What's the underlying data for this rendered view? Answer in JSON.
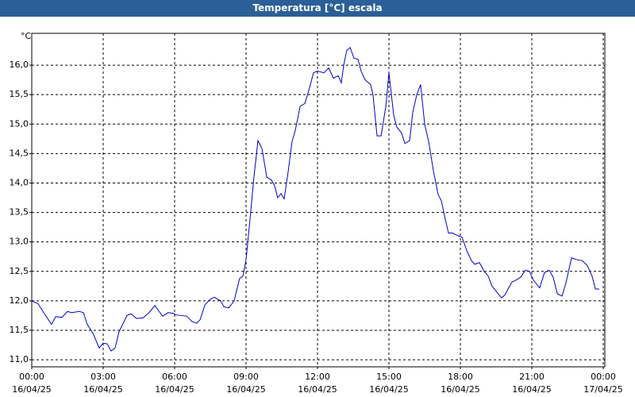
{
  "chart_data": {
    "type": "line",
    "title": "Temperatura [°C] escala",
    "y_label": "°C",
    "grid": true,
    "color": "#0000c8",
    "xlim": [
      0,
      24
    ],
    "xticks": [
      {
        "value": 0,
        "label": "00:00"
      },
      {
        "value": 3,
        "label": "03:00"
      },
      {
        "value": 6,
        "label": "06:00"
      },
      {
        "value": 9,
        "label": "09:00"
      },
      {
        "value": 12,
        "label": "12:00"
      },
      {
        "value": 15,
        "label": "15:00"
      },
      {
        "value": 18,
        "label": "18:00"
      },
      {
        "value": 21,
        "label": "21:00"
      },
      {
        "value": 24,
        "label": "00:00"
      }
    ],
    "xtick_dates": [
      "16/04/25",
      "16/04/25",
      "16/04/25",
      "16/04/25",
      "16/04/25",
      "16/04/25",
      "16/04/25",
      "16/04/25",
      "17/04/25"
    ],
    "ylim": [
      10.88,
      16.54
    ],
    "yticks": [
      {
        "value": 11,
        "label": "11,0"
      },
      {
        "value": 11.5,
        "label": "11,5"
      },
      {
        "value": 12,
        "label": "12,0"
      },
      {
        "value": 12.5,
        "label": "12,5"
      },
      {
        "value": 13,
        "label": "13,0"
      },
      {
        "value": 13.5,
        "label": "13,5"
      },
      {
        "value": 14,
        "label": "14,0"
      },
      {
        "value": 14.5,
        "label": "14,5"
      },
      {
        "value": 15,
        "label": "15,0"
      },
      {
        "value": 15.5,
        "label": "15,5"
      },
      {
        "value": 16,
        "label": "16,0"
      }
    ],
    "x": [
      0,
      0.27,
      0.5,
      0.83,
      1,
      1.27,
      1.5,
      1.67,
      2,
      2.17,
      2.33,
      2.57,
      2.83,
      3,
      3.17,
      3.33,
      3.5,
      3.67,
      4,
      4.17,
      4.4,
      4.67,
      4.93,
      5.17,
      5.33,
      5.5,
      5.73,
      5.93,
      6.07,
      6.5,
      6.73,
      6.93,
      7.07,
      7.27,
      7.5,
      7.67,
      7.93,
      8.07,
      8.27,
      8.5,
      8.73,
      8.87,
      9,
      9.17,
      9.33,
      9.5,
      9.67,
      9.87,
      10.07,
      10.2,
      10.33,
      10.47,
      10.6,
      10.77,
      10.93,
      11.07,
      11.27,
      11.47,
      11.67,
      11.83,
      12,
      12.27,
      12.47,
      12.67,
      12.87,
      13,
      13.1,
      13.23,
      13.37,
      13.53,
      13.7,
      13.83,
      14,
      14.23,
      14.33,
      14.5,
      14.67,
      14.87,
      15,
      15.2,
      15.33,
      15.53,
      15.67,
      15.87,
      16,
      16.17,
      16.33,
      16.5,
      16.67,
      16.87,
      17.07,
      17.2,
      17.33,
      17.5,
      17.67,
      17.93,
      18.07,
      18.27,
      18.47,
      18.6,
      18.8,
      19,
      19.17,
      19.33,
      19.53,
      19.73,
      19.87,
      20,
      20.17,
      20.33,
      20.53,
      20.73,
      20.9,
      21.07,
      21.33,
      21.53,
      21.73,
      21.9,
      22.07,
      22.27,
      22.43,
      22.67,
      22.87,
      23.13,
      23.33,
      23.53,
      23.67,
      23.83
    ],
    "values": [
      12.0,
      11.95,
      11.8,
      11.6,
      11.73,
      11.72,
      11.82,
      11.8,
      11.82,
      11.8,
      11.6,
      11.45,
      11.2,
      11.28,
      11.27,
      11.15,
      11.2,
      11.48,
      11.75,
      11.78,
      11.7,
      11.71,
      11.8,
      11.92,
      11.83,
      11.74,
      11.8,
      11.79,
      11.76,
      11.74,
      11.65,
      11.62,
      11.68,
      11.93,
      12.03,
      12.06,
      12.0,
      11.9,
      11.88,
      12.0,
      12.38,
      12.42,
      12.7,
      13.4,
      14.1,
      14.72,
      14.58,
      14.1,
      14.05,
      13.95,
      13.75,
      13.82,
      13.73,
      14.2,
      14.7,
      14.9,
      15.3,
      15.35,
      15.62,
      15.87,
      15.9,
      15.87,
      15.95,
      15.78,
      15.82,
      15.7,
      16.0,
      16.25,
      16.3,
      16.12,
      16.1,
      15.9,
      15.75,
      15.67,
      15.5,
      14.8,
      14.8,
      15.3,
      15.87,
      15.15,
      14.95,
      14.85,
      14.67,
      14.72,
      15.2,
      15.5,
      15.67,
      15.0,
      14.7,
      14.2,
      13.8,
      13.7,
      13.45,
      13.15,
      13.15,
      13.1,
      13.08,
      12.85,
      12.68,
      12.62,
      12.65,
      12.5,
      12.42,
      12.25,
      12.15,
      12.05,
      12.1,
      12.2,
      12.32,
      12.35,
      12.4,
      12.52,
      12.5,
      12.35,
      12.22,
      12.48,
      12.52,
      12.4,
      12.12,
      12.08,
      12.3,
      12.73,
      12.7,
      12.68,
      12.6,
      12.42,
      12.2,
      12.2
    ]
  }
}
